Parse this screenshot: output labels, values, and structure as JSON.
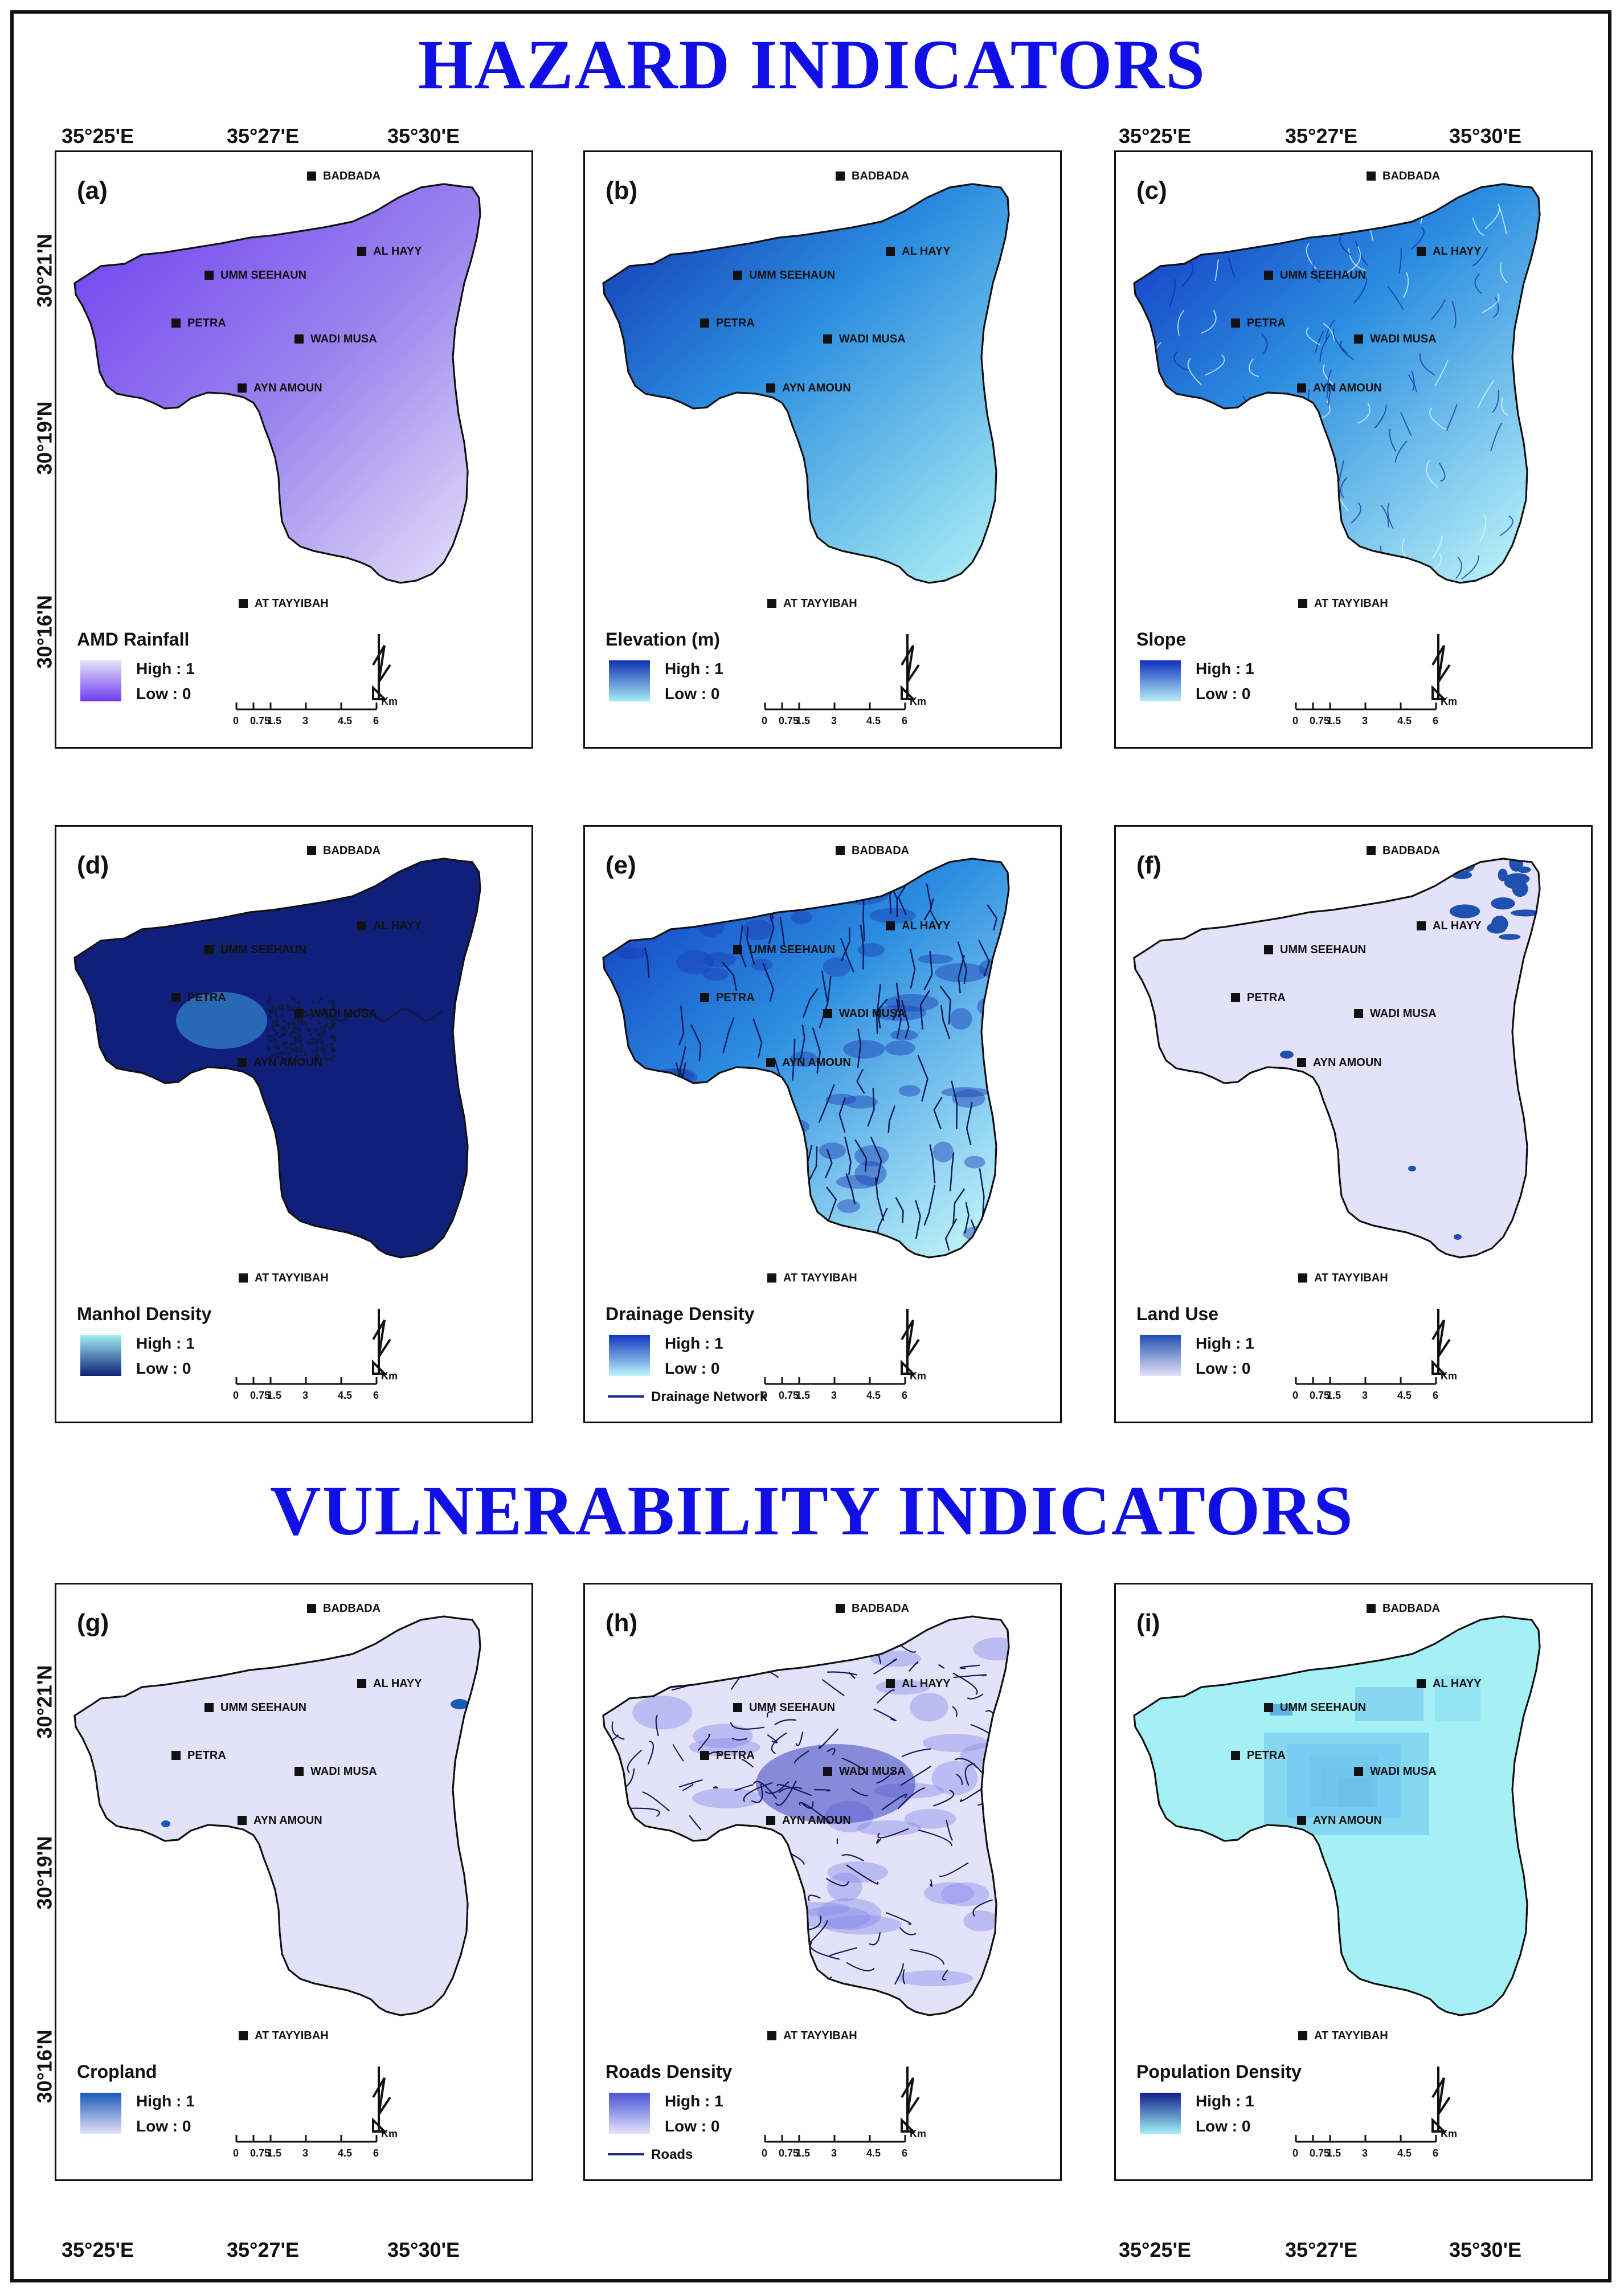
{
  "section_titles": {
    "hazard": "HAZARD INDICATORS",
    "vulnerability": "VULNERABILITY INDICATORS"
  },
  "coordinates": {
    "longitudes": [
      "35°25'E",
      "35°27'E",
      "35°30'E"
    ],
    "latitudes": [
      "30°21'N",
      "30°19'N",
      "30°16'N"
    ]
  },
  "places": [
    "BADBADA",
    "AL HAYY",
    "UMM SEEHAUN",
    "PETRA",
    "WADI MUSA",
    "AYN AMOUN",
    "AT TAYYIBAH"
  ],
  "scale_bar": {
    "ticks": [
      "0",
      "0.75",
      "1.5",
      "3",
      "4.5",
      "6"
    ],
    "unit": "Km"
  },
  "panels": [
    {
      "id": "a",
      "label": "(a)",
      "legend_title": "AMD Rainfall",
      "high": "High : 1",
      "low": "Low : 0",
      "extra": "",
      "color_high": "#e6e2f8",
      "color_low": "#6e3cf0",
      "fill_style": "gradient-purple"
    },
    {
      "id": "b",
      "label": "(b)",
      "legend_title": "Elevation (m)",
      "high": "High : 1",
      "low": "Low : 0",
      "extra": "",
      "color_high": "#1030b0",
      "color_low": "#a8ecf4",
      "fill_style": "gradient-blue"
    },
    {
      "id": "c",
      "label": "(c)",
      "legend_title": "Slope",
      "high": "High : 1",
      "low": "Low : 0",
      "extra": "",
      "color_high": "#1030c0",
      "color_low": "#b8f0f8",
      "fill_style": "texture-blue"
    },
    {
      "id": "d",
      "label": "(d)",
      "legend_title": "Manhol Density",
      "high": "High : 1",
      "low": "Low : 0",
      "extra": "",
      "color_high": "#9ef0f0",
      "color_low": "#10207a",
      "fill_style": "flat-cyan"
    },
    {
      "id": "e",
      "label": "(e)",
      "legend_title": "Drainage Density",
      "high": "High : 1",
      "low": "Low : 0",
      "extra": "Drainage Network",
      "color_high": "#1036c0",
      "color_low": "#c0f4fa",
      "fill_style": "drainage"
    },
    {
      "id": "f",
      "label": "(f)",
      "legend_title": "Land Use",
      "high": "High : 1",
      "low": "Low : 0",
      "extra": "",
      "color_high": "#2050b0",
      "color_low": "#e4e2f8",
      "fill_style": "flat-lavender"
    },
    {
      "id": "g",
      "label": "(g)",
      "legend_title": "Cropland",
      "high": "High : 1",
      "low": "Low : 0",
      "extra": "",
      "color_high": "#1a5ab8",
      "color_low": "#e4e2f8",
      "fill_style": "flat-lavender2"
    },
    {
      "id": "h",
      "label": "(h)",
      "legend_title": "Roads Density",
      "high": "High : 1",
      "low": "Low : 0",
      "extra": "Roads",
      "color_high": "#4a56d8",
      "color_low": "#e4e2f8",
      "fill_style": "roads"
    },
    {
      "id": "i",
      "label": "(i)",
      "legend_title": "Population Density",
      "high": "High : 1",
      "low": "Low : 0",
      "extra": "",
      "color_high": "#10208c",
      "color_low": "#a4f0f4",
      "fill_style": "population"
    }
  ]
}
